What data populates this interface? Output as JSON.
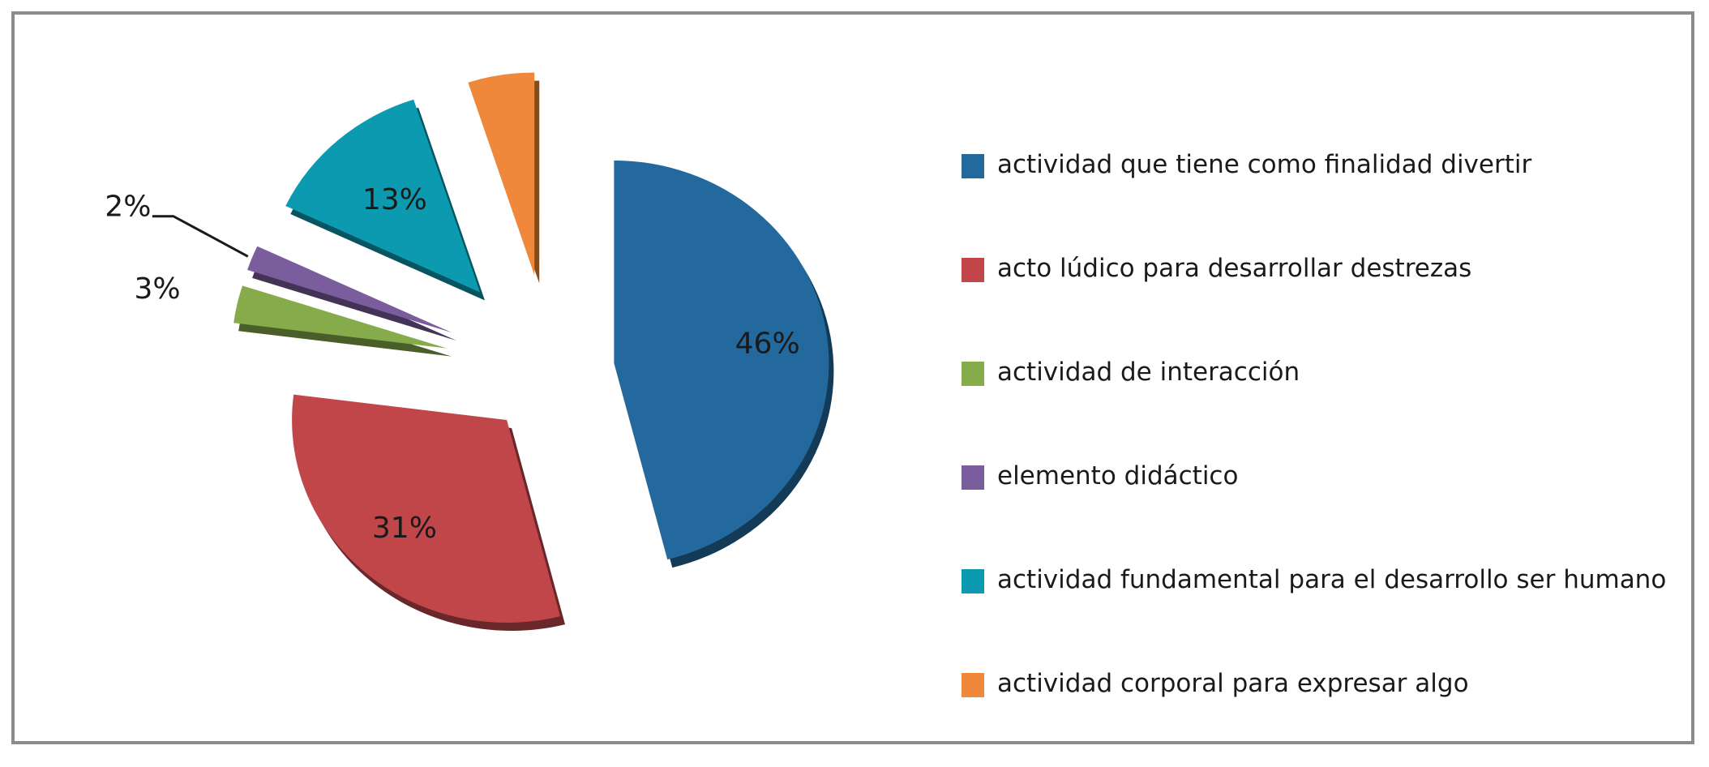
{
  "chart_data": {
    "type": "pie",
    "title": "",
    "exploded": true,
    "slices": [
      {
        "label": "actividad que tiene como finalidad divertir",
        "value": 46,
        "display": "46%",
        "color": "#23699d"
      },
      {
        "label": "acto lúdico para desarrollar destrezas",
        "value": 31,
        "display": "31%",
        "color": "#c0464a"
      },
      {
        "label": "actividad de interacción",
        "value": 3,
        "display": "3%",
        "color": "#86ab4a"
      },
      {
        "label": "elemento didáctico",
        "value": 2,
        "display": "2%",
        "color": "#7a5d9c"
      },
      {
        "label": "actividad fundamental para el desarrollo ser humano",
        "value": 13,
        "display": "13%",
        "color": "#0b9ab0"
      },
      {
        "label": "actividad corporal para expresar algo",
        "value": 5,
        "display": "5%",
        "color": "#ef883a"
      }
    ],
    "legend_position": "right"
  }
}
